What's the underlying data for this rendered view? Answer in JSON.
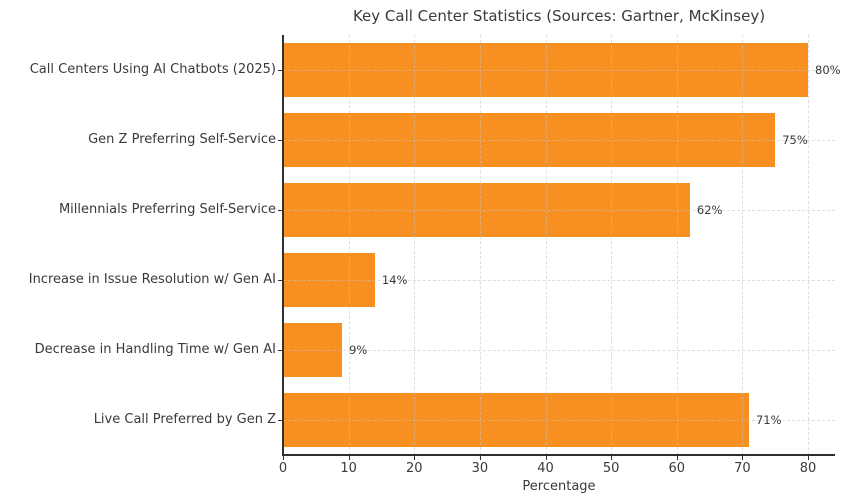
{
  "chart_data": {
    "type": "bar",
    "orientation": "horizontal",
    "title": "Key Call Center Statistics (Sources: Gartner, McKinsey)",
    "xlabel": "Percentage",
    "categories": [
      "Call Centers Using AI Chatbots (2025)",
      "Gen Z Preferring Self-Service",
      "Millennials Preferring Self-Service",
      "Increase in Issue Resolution w/ Gen AI",
      "Decrease in Handling Time w/ Gen AI",
      "Live Call Preferred by Gen Z"
    ],
    "values": [
      80,
      75,
      62,
      14,
      9,
      71
    ],
    "value_labels": [
      "80%",
      "75%",
      "62%",
      "14%",
      "9%",
      "71%"
    ],
    "x_ticks": [
      0,
      10,
      20,
      30,
      40,
      50,
      60,
      70,
      80
    ],
    "xlim": [
      0,
      84
    ],
    "grid": true,
    "grid_style": "dashed",
    "legend": "none",
    "bar_color": "#f89021",
    "grid_color": "#c3c3c3",
    "text_color": "#3a3a3a",
    "spine_color": "#303030"
  }
}
